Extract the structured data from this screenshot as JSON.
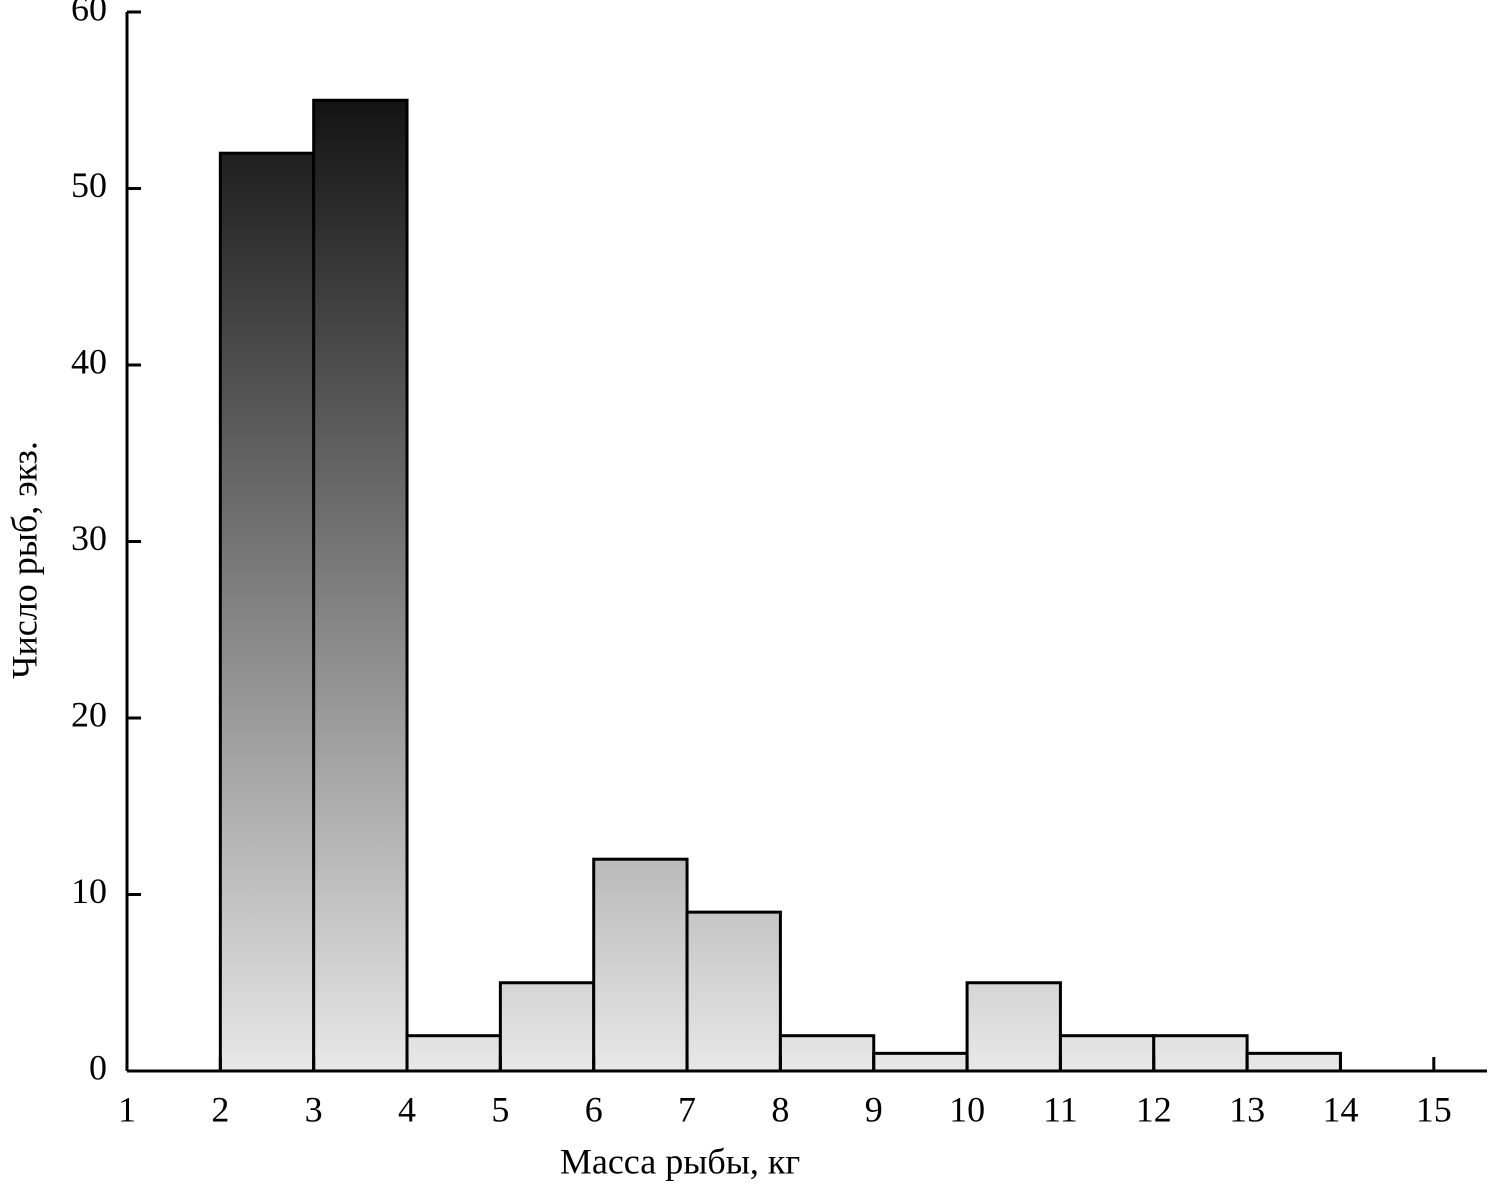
{
  "chart_data": {
    "type": "histogram",
    "x_label": "Масса рыбы, кг",
    "y_label": "Число рыб, экз.",
    "bins": [
      2,
      3,
      4,
      5,
      6,
      7,
      8,
      9,
      10,
      11,
      12,
      13,
      14
    ],
    "counts": [
      52,
      55,
      2,
      5,
      12,
      9,
      2,
      1,
      5,
      2,
      2,
      1
    ],
    "gradient": [
      "#000000",
      "#e8e8e8"
    ],
    "xlim": [
      1,
      15.57
    ],
    "xticks": [
      1,
      2,
      3,
      4,
      5,
      6,
      7,
      8,
      9,
      10,
      11,
      12,
      13,
      14,
      15
    ],
    "ylim": [
      0,
      60
    ],
    "yticks": [
      0,
      10,
      20,
      30,
      40,
      50,
      60
    ]
  }
}
